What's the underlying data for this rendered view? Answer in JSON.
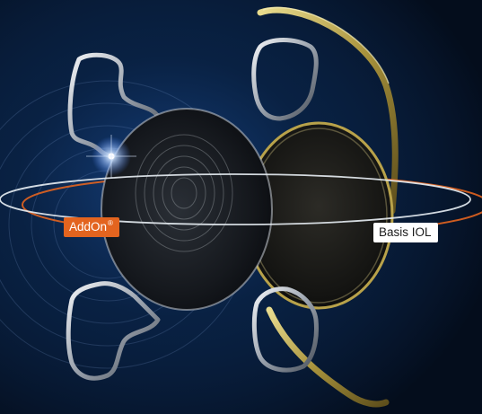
{
  "image": {
    "subject": "two intraocular lenses with haptics",
    "colors": {
      "background": "#061428",
      "glow_blue": "#1b4f9a",
      "addon_ring": "#e3641f",
      "basis_ring": "#e8eef4",
      "haptic_gold": "#b8a24a",
      "haptic_silver": "#c9ced6"
    }
  },
  "labels": {
    "addon": {
      "text": "AddOn",
      "mark": "®"
    },
    "basis": {
      "text": "Basis IOL"
    }
  }
}
